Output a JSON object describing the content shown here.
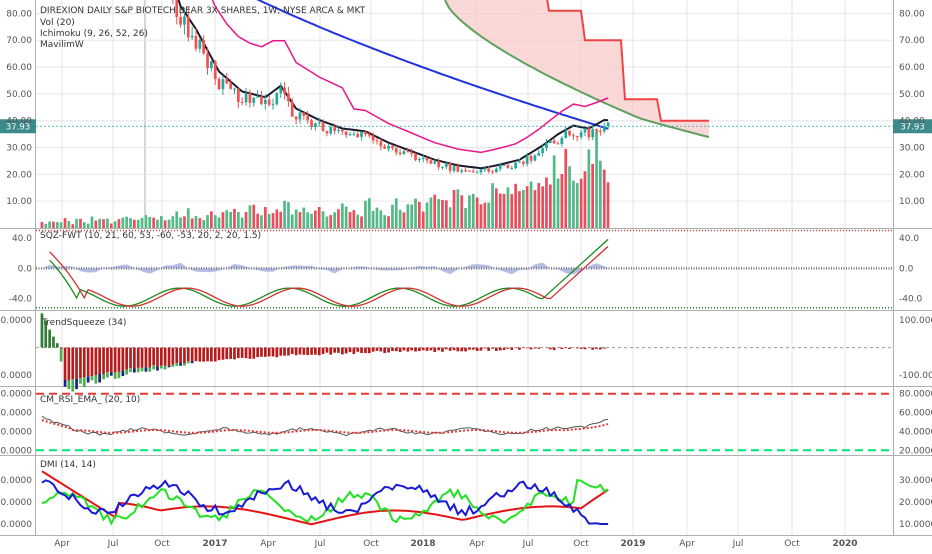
{
  "header": {
    "title": "DIREXION DAILY S&P BIOTECH BEAR 3X SHARES, 1W, NYSE ARCA & MKT",
    "indicators": [
      "Vol (20)",
      "Ichimoku (9, 26, 52, 26)",
      "MavilimW"
    ]
  },
  "colors": {
    "bg": "#ffffff",
    "grid": "#e6e6e6",
    "up": "#26a69a",
    "down": "#ef5350",
    "vol_up": "#53b987",
    "vol_down": "#eb4d5c",
    "tenkan": "#2233dd",
    "kijun": "#e8168c",
    "mavilim": "#1a1a2e",
    "senkou_a": "#5fa05f",
    "senkou_b": "#ee4444",
    "cloud": "#f8c8c8",
    "price_badge": "#3c8a8a"
  },
  "axis": {
    "x_labels": [
      "Apr",
      "Jul",
      "Oct",
      "2017",
      "Apr",
      "Jul",
      "Oct",
      "2018",
      "Apr",
      "Jul",
      "Oct",
      "2019",
      "Apr",
      "Jul",
      "Oct",
      "2020"
    ],
    "current_price": "37.93"
  },
  "chart_data": [
    {
      "type": "candlestick",
      "panel": "price",
      "title": "DIREXION DAILY S&P BIOTECH BEAR 3X SHARES, 1W, NYSE ARCA & MKT",
      "ylim": [
        0,
        85
      ],
      "y_ticks": [
        "10.00",
        "20.00",
        "30.00",
        "40.00",
        "50.00",
        "60.00",
        "70.00",
        "80.00"
      ],
      "price_line": 37.93,
      "series": [
        {
          "name": "Vol (20)",
          "type": "bar",
          "values": [
            2,
            2,
            2,
            3,
            2,
            3,
            2,
            4,
            3,
            3,
            2,
            3,
            4,
            3,
            3,
            4,
            5,
            4,
            3,
            4,
            5,
            6,
            4,
            5,
            4,
            6,
            5,
            7,
            6,
            5,
            6,
            7,
            5,
            6,
            5,
            7,
            8,
            6,
            7,
            8,
            7,
            8,
            6,
            5,
            9,
            7,
            8,
            6,
            9,
            7,
            8,
            6,
            9,
            8,
            10,
            9,
            8,
            12,
            10,
            11,
            9,
            13,
            12,
            10,
            14,
            12,
            11,
            13,
            16,
            15,
            14,
            18,
            17,
            16,
            15,
            20,
            22,
            18,
            24,
            21,
            25,
            35,
            28,
            22,
            20
          ]
        },
        {
          "name": "Ichimoku",
          "type": "line"
        },
        {
          "name": "MavilimW",
          "type": "line"
        }
      ]
    },
    {
      "type": "line",
      "panel": "sqz",
      "title": "SQZ-FWT (10, 21, 60, 53, -60, -53, 20, 2, 20, 1.5)",
      "ylim": [
        -55,
        52
      ],
      "y_ticks": [
        "40.0",
        "0.0",
        "-40.0"
      ]
    },
    {
      "type": "bar",
      "panel": "trend",
      "title": "TrendSqueeze (34)",
      "ylim": [
        -140,
        130
      ],
      "y_ticks": [
        "100.0000",
        "-100.0000"
      ]
    },
    {
      "type": "line",
      "panel": "rsi",
      "title": "CM_RSI_EMA_ (20, 10)",
      "ylim": [
        15,
        85
      ],
      "y_ticks": [
        "80.0000",
        "60.0000",
        "40.0000",
        "20.0000"
      ]
    },
    {
      "type": "line",
      "panel": "dmi",
      "title": "DMI (14, 14)",
      "ylim": [
        5,
        40
      ],
      "y_ticks": [
        "30.0000",
        "20.0000",
        "10.0000"
      ]
    }
  ]
}
